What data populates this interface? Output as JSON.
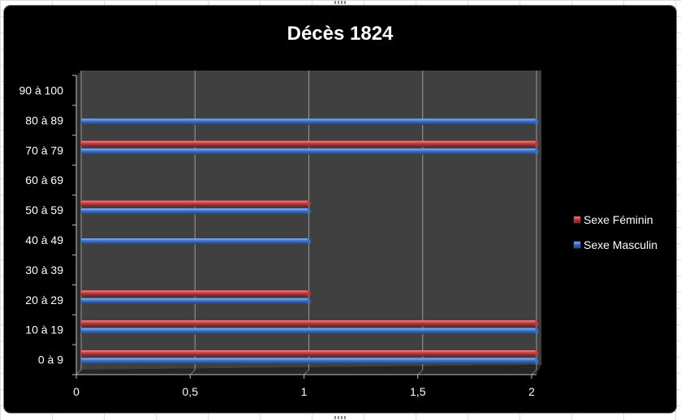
{
  "chart_data": {
    "type": "bar",
    "orientation": "horizontal",
    "title": "Décès 1824",
    "categories": [
      "0 à 9",
      "10 à 19",
      "20 à 29",
      "30 à 39",
      "40 à 49",
      "50 à 59",
      "60 à 69",
      "70 à 79",
      "80 à 89",
      "90 à 100"
    ],
    "series": [
      {
        "name": "Sexe Féminin",
        "color": "#c0393b",
        "values": [
          2,
          2,
          1,
          0,
          0,
          1,
          0,
          2,
          0,
          0
        ]
      },
      {
        "name": "Sexe Masculin",
        "color": "#3a6fc4",
        "values": [
          2,
          2,
          1,
          0,
          1,
          1,
          0,
          2,
          2,
          0
        ]
      }
    ],
    "xlim": [
      0,
      2
    ],
    "xticks": [
      0,
      0.5,
      1,
      1.5,
      2
    ],
    "xtick_labels": [
      "0",
      "0,5",
      "1",
      "1,5",
      "2"
    ],
    "xlabel": "",
    "ylabel": "",
    "grid": true,
    "legend_position": "right",
    "plot_background": "#404040",
    "background": "#000000"
  }
}
